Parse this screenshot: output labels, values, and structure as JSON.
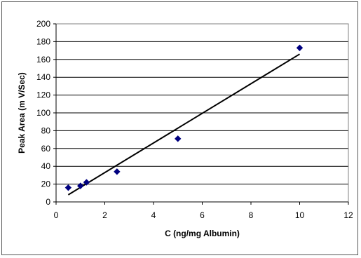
{
  "chart_data": {
    "type": "scatter",
    "title": "",
    "xlabel": "C (ng/mg Albumin)",
    "ylabel": "Peak Area (m V/Sec)",
    "xlim": [
      0,
      12
    ],
    "ylim": [
      0,
      200
    ],
    "x_ticks": [
      0,
      2,
      4,
      6,
      8,
      10,
      12
    ],
    "y_ticks": [
      0,
      20,
      40,
      60,
      80,
      100,
      120,
      140,
      160,
      180,
      200
    ],
    "grid": "horizontal",
    "legend": "none",
    "series": [
      {
        "points": [
          {
            "x": 0.5,
            "y": 16
          },
          {
            "x": 1.0,
            "y": 18
          },
          {
            "x": 1.25,
            "y": 22
          },
          {
            "x": 2.5,
            "y": 34
          },
          {
            "x": 5.0,
            "y": 71
          },
          {
            "x": 10.0,
            "y": 173
          }
        ],
        "marker": "diamond",
        "color": "#000080"
      }
    ],
    "trendline": {
      "type": "linear",
      "from": {
        "x": 0.5,
        "y": 8
      },
      "to": {
        "x": 10.0,
        "y": 166
      },
      "color": "#000000"
    }
  }
}
